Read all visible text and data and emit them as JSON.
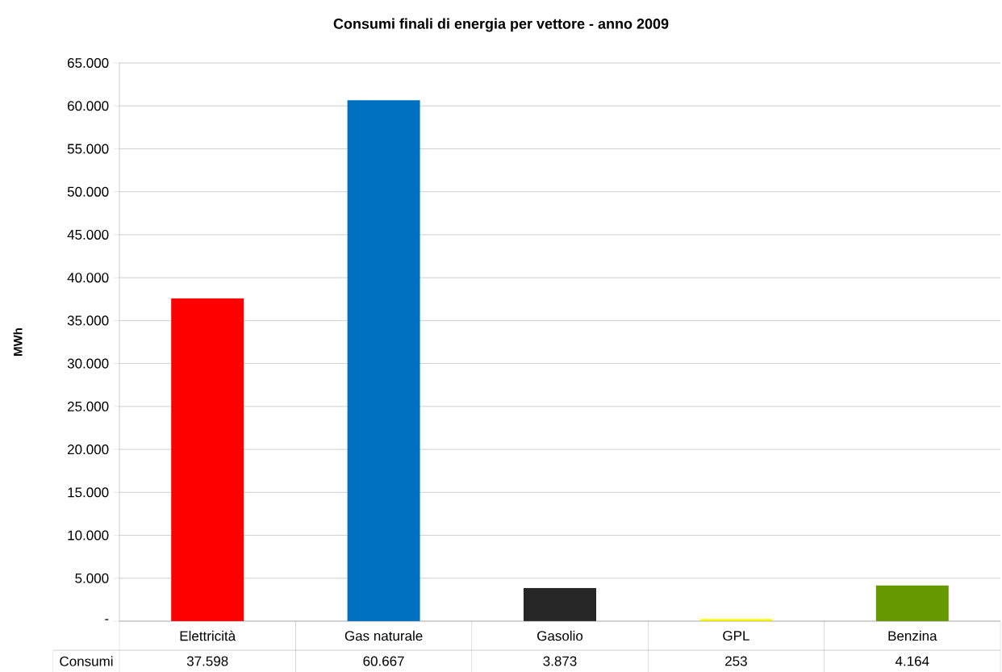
{
  "chart_data": {
    "type": "bar",
    "title": "Consumi finali di energia per vettore - anno 2009",
    "ylabel": "MWh",
    "categories": [
      "Elettricità",
      "Gas naturale",
      "Gasolio",
      "GPL",
      "Benzina"
    ],
    "series": [
      {
        "name": "Consumi",
        "colors": [
          "#ff0000",
          "#0070c0",
          "#262626",
          "#ffff00",
          "#669900"
        ],
        "values": [
          37598,
          60667,
          3873,
          253,
          4164
        ],
        "value_labels": [
          "37.598",
          "60.667",
          "3.873",
          "253",
          "4.164"
        ]
      }
    ],
    "ylim": [
      0,
      65000
    ],
    "yticks": [
      {
        "value": 0,
        "label": "-"
      },
      {
        "value": 5000,
        "label": "5.000"
      },
      {
        "value": 10000,
        "label": "10.000"
      },
      {
        "value": 15000,
        "label": "15.000"
      },
      {
        "value": 20000,
        "label": "20.000"
      },
      {
        "value": 25000,
        "label": "25.000"
      },
      {
        "value": 30000,
        "label": "30.000"
      },
      {
        "value": 35000,
        "label": "35.000"
      },
      {
        "value": 40000,
        "label": "40.000"
      },
      {
        "value": 45000,
        "label": "45.000"
      },
      {
        "value": 50000,
        "label": "50.000"
      },
      {
        "value": 55000,
        "label": "55.000"
      },
      {
        "value": 60000,
        "label": "60.000"
      },
      {
        "value": 65000,
        "label": "65.000"
      }
    ],
    "grid": "y",
    "data_labels": true
  }
}
